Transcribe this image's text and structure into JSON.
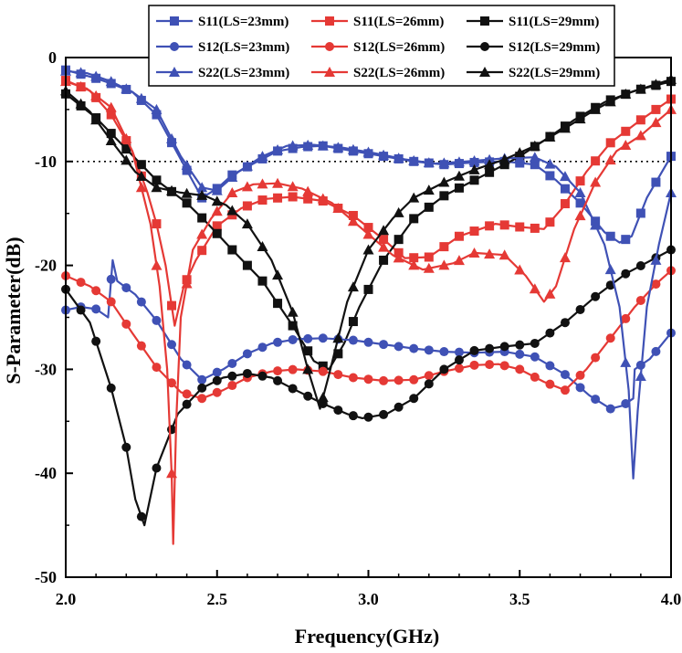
{
  "chart_data": {
    "type": "line",
    "xlabel": "Frequency(GHz)",
    "ylabel": "S-Parameter(dB)",
    "xlim": [
      2.0,
      4.0
    ],
    "ylim": [
      -50,
      0
    ],
    "xticks": [
      2.0,
      2.5,
      3.0,
      3.5,
      4.0
    ],
    "xtick_labels": [
      "2.0",
      "2.5",
      "3.0",
      "3.5",
      "4.0"
    ],
    "yticks": [
      0,
      -10,
      -20,
      -30,
      -40,
      -50
    ],
    "ytick_labels": [
      "0",
      "-10",
      "-20",
      "-30",
      "-40",
      "-50"
    ],
    "reference_line": {
      "y": -10,
      "style": "dotted"
    },
    "legend_position": "top",
    "grid": false,
    "series": [
      {
        "name": "S11(LS=23mm)",
        "color": "#3F51B5",
        "marker": "square",
        "points": [
          [
            2.0,
            -1.2
          ],
          [
            2.05,
            -1.6
          ],
          [
            2.1,
            -2.0
          ],
          [
            2.15,
            -2.5
          ],
          [
            2.22,
            -3.3
          ],
          [
            2.3,
            -5.5
          ],
          [
            2.38,
            -9.8
          ],
          [
            2.45,
            -13.5
          ],
          [
            2.5,
            -12.6
          ],
          [
            2.55,
            -11.3
          ],
          [
            2.62,
            -10.2
          ],
          [
            2.7,
            -9.0
          ],
          [
            2.78,
            -8.6
          ],
          [
            2.85,
            -8.5
          ],
          [
            2.95,
            -9.0
          ],
          [
            3.05,
            -9.5
          ],
          [
            3.15,
            -10.0
          ],
          [
            3.25,
            -10.3
          ],
          [
            3.35,
            -10.1
          ],
          [
            3.45,
            -10.0
          ],
          [
            3.55,
            -10.3
          ],
          [
            3.62,
            -11.8
          ],
          [
            3.7,
            -14.0
          ],
          [
            3.78,
            -16.8
          ],
          [
            3.83,
            -17.8
          ],
          [
            3.87,
            -17.2
          ],
          [
            3.92,
            -13.5
          ],
          [
            4.0,
            -9.5
          ]
        ]
      },
      {
        "name": "S11(LS=26mm)",
        "color": "#E53935",
        "marker": "square",
        "points": [
          [
            2.0,
            -2.2
          ],
          [
            2.08,
            -3.2
          ],
          [
            2.15,
            -5.5
          ],
          [
            2.22,
            -9.0
          ],
          [
            2.27,
            -13.0
          ],
          [
            2.3,
            -16.0
          ],
          [
            2.33,
            -20.0
          ],
          [
            2.36,
            -25.8
          ],
          [
            2.39,
            -22.0
          ],
          [
            2.43,
            -19.5
          ],
          [
            2.5,
            -16.2
          ],
          [
            2.58,
            -14.5
          ],
          [
            2.66,
            -13.6
          ],
          [
            2.75,
            -13.4
          ],
          [
            2.85,
            -13.8
          ],
          [
            2.95,
            -15.2
          ],
          [
            3.05,
            -17.5
          ],
          [
            3.12,
            -19.3
          ],
          [
            3.2,
            -19.2
          ],
          [
            3.3,
            -17.2
          ],
          [
            3.42,
            -16.0
          ],
          [
            3.5,
            -16.3
          ],
          [
            3.58,
            -16.5
          ],
          [
            3.64,
            -14.5
          ],
          [
            3.72,
            -11.0
          ],
          [
            3.8,
            -8.2
          ],
          [
            3.9,
            -6.0
          ],
          [
            4.0,
            -4.0
          ]
        ]
      },
      {
        "name": "S11(LS=29mm)",
        "color": "#111111",
        "marker": "square",
        "points": [
          [
            2.0,
            -3.5
          ],
          [
            2.1,
            -5.8
          ],
          [
            2.2,
            -8.8
          ],
          [
            2.3,
            -11.8
          ],
          [
            2.4,
            -14.0
          ],
          [
            2.47,
            -16.0
          ],
          [
            2.55,
            -18.5
          ],
          [
            2.65,
            -21.5
          ],
          [
            2.75,
            -25.8
          ],
          [
            2.82,
            -29.2
          ],
          [
            2.87,
            -30.0
          ],
          [
            2.92,
            -27.5
          ],
          [
            2.97,
            -24.0
          ],
          [
            3.05,
            -19.5
          ],
          [
            3.15,
            -15.5
          ],
          [
            3.25,
            -13.3
          ],
          [
            3.35,
            -11.8
          ],
          [
            3.45,
            -10.3
          ],
          [
            3.5,
            -9.5
          ],
          [
            3.58,
            -8.0
          ],
          [
            3.68,
            -6.0
          ],
          [
            3.78,
            -4.3
          ],
          [
            3.88,
            -3.2
          ],
          [
            4.0,
            -2.3
          ]
        ]
      },
      {
        "name": "S12(LS=23mm)",
        "color": "#3F51B5",
        "marker": "circle",
        "points": [
          [
            2.0,
            -24.3
          ],
          [
            2.05,
            -24.0
          ],
          [
            2.1,
            -24.2
          ],
          [
            2.14,
            -25.0
          ],
          [
            2.155,
            -19.5
          ],
          [
            2.17,
            -21.5
          ],
          [
            2.23,
            -22.8
          ],
          [
            2.3,
            -25.3
          ],
          [
            2.38,
            -29.0
          ],
          [
            2.45,
            -31.0
          ],
          [
            2.52,
            -30.0
          ],
          [
            2.6,
            -28.5
          ],
          [
            2.68,
            -27.5
          ],
          [
            2.76,
            -27.1
          ],
          [
            2.85,
            -27.0
          ],
          [
            2.95,
            -27.2
          ],
          [
            3.05,
            -27.6
          ],
          [
            3.15,
            -28.0
          ],
          [
            3.25,
            -28.3
          ],
          [
            3.35,
            -28.4
          ],
          [
            3.45,
            -28.3
          ],
          [
            3.55,
            -28.8
          ],
          [
            3.65,
            -30.5
          ],
          [
            3.73,
            -32.5
          ],
          [
            3.8,
            -33.8
          ],
          [
            3.84,
            -33.5
          ],
          [
            3.875,
            -32.8
          ],
          [
            3.88,
            -30.0
          ],
          [
            3.93,
            -29.0
          ],
          [
            4.0,
            -26.5
          ]
        ]
      },
      {
        "name": "S12(LS=26mm)",
        "color": "#E53935",
        "marker": "circle",
        "points": [
          [
            2.0,
            -21.0
          ],
          [
            2.08,
            -22.0
          ],
          [
            2.15,
            -23.5
          ],
          [
            2.22,
            -26.5
          ],
          [
            2.3,
            -29.8
          ],
          [
            2.38,
            -32.2
          ],
          [
            2.45,
            -32.8
          ],
          [
            2.52,
            -32.0
          ],
          [
            2.6,
            -30.8
          ],
          [
            2.68,
            -30.2
          ],
          [
            2.76,
            -30.0
          ],
          [
            2.85,
            -30.2
          ],
          [
            2.95,
            -30.8
          ],
          [
            3.05,
            -31.1
          ],
          [
            3.15,
            -31.0
          ],
          [
            3.25,
            -30.2
          ],
          [
            3.35,
            -29.6
          ],
          [
            3.43,
            -29.5
          ],
          [
            3.5,
            -30.0
          ],
          [
            3.58,
            -31.2
          ],
          [
            3.65,
            -32.0
          ],
          [
            3.72,
            -30.0
          ],
          [
            3.8,
            -27.0
          ],
          [
            3.88,
            -24.0
          ],
          [
            3.95,
            -21.8
          ],
          [
            4.0,
            -20.5
          ]
        ]
      },
      {
        "name": "S12(LS=29mm)",
        "color": "#111111",
        "marker": "circle",
        "points": [
          [
            2.0,
            -22.3
          ],
          [
            2.08,
            -25.5
          ],
          [
            2.15,
            -31.8
          ],
          [
            2.2,
            -37.5
          ],
          [
            2.23,
            -42.5
          ],
          [
            2.26,
            -45.0
          ],
          [
            2.3,
            -39.5
          ],
          [
            2.37,
            -34.3
          ],
          [
            2.45,
            -31.8
          ],
          [
            2.52,
            -30.8
          ],
          [
            2.6,
            -30.4
          ],
          [
            2.68,
            -30.8
          ],
          [
            2.76,
            -32.0
          ],
          [
            2.85,
            -33.3
          ],
          [
            2.93,
            -34.3
          ],
          [
            2.98,
            -34.7
          ],
          [
            3.06,
            -34.3
          ],
          [
            3.15,
            -32.8
          ],
          [
            3.25,
            -30.0
          ],
          [
            3.35,
            -28.2
          ],
          [
            3.45,
            -27.8
          ],
          [
            3.55,
            -27.5
          ],
          [
            3.65,
            -25.5
          ],
          [
            3.75,
            -23.0
          ],
          [
            3.85,
            -20.8
          ],
          [
            4.0,
            -18.5
          ]
        ]
      },
      {
        "name": "S22(LS=23mm)",
        "color": "#3F51B5",
        "marker": "triangle",
        "points": [
          [
            2.0,
            -1.3
          ],
          [
            2.07,
            -1.5
          ],
          [
            2.15,
            -2.3
          ],
          [
            2.22,
            -3.3
          ],
          [
            2.3,
            -5.0
          ],
          [
            2.38,
            -9.5
          ],
          [
            2.45,
            -12.5
          ],
          [
            2.5,
            -12.8
          ],
          [
            2.57,
            -11.0
          ],
          [
            2.65,
            -9.5
          ],
          [
            2.73,
            -8.5
          ],
          [
            2.82,
            -8.4
          ],
          [
            2.92,
            -8.7
          ],
          [
            3.02,
            -9.2
          ],
          [
            3.12,
            -9.8
          ],
          [
            3.22,
            -10.2
          ],
          [
            3.32,
            -10.0
          ],
          [
            3.45,
            -9.7
          ],
          [
            3.55,
            -9.6
          ],
          [
            3.62,
            -10.5
          ],
          [
            3.7,
            -13.0
          ],
          [
            3.78,
            -18.0
          ],
          [
            3.83,
            -24.0
          ],
          [
            3.86,
            -32.0
          ],
          [
            3.875,
            -40.5
          ],
          [
            3.89,
            -34.0
          ],
          [
            3.92,
            -24.0
          ],
          [
            3.96,
            -18.0
          ],
          [
            4.0,
            -13.0
          ]
        ]
      },
      {
        "name": "S22(LS=26mm)",
        "color": "#E53935",
        "marker": "triangle",
        "points": [
          [
            2.0,
            -2.3
          ],
          [
            2.07,
            -3.0
          ],
          [
            2.15,
            -4.8
          ],
          [
            2.22,
            -9.0
          ],
          [
            2.28,
            -16.0
          ],
          [
            2.31,
            -22.0
          ],
          [
            2.335,
            -30.0
          ],
          [
            2.35,
            -40.0
          ],
          [
            2.355,
            -46.8
          ],
          [
            2.365,
            -35.0
          ],
          [
            2.38,
            -25.0
          ],
          [
            2.42,
            -18.5
          ],
          [
            2.48,
            -15.5
          ],
          [
            2.55,
            -13.0
          ],
          [
            2.62,
            -12.2
          ],
          [
            2.7,
            -12.1
          ],
          [
            2.78,
            -12.6
          ],
          [
            2.88,
            -14.0
          ],
          [
            2.98,
            -16.5
          ],
          [
            3.08,
            -19.0
          ],
          [
            3.18,
            -20.4
          ],
          [
            3.28,
            -19.8
          ],
          [
            3.35,
            -18.8
          ],
          [
            3.45,
            -19.0
          ],
          [
            3.52,
            -21.0
          ],
          [
            3.58,
            -23.5
          ],
          [
            3.62,
            -22.0
          ],
          [
            3.68,
            -16.5
          ],
          [
            3.75,
            -12.0
          ],
          [
            3.82,
            -9.0
          ],
          [
            3.9,
            -7.5
          ],
          [
            4.0,
            -5.0
          ]
        ]
      },
      {
        "name": "S22(LS=29mm)",
        "color": "#111111",
        "marker": "triangle",
        "points": [
          [
            2.0,
            -3.2
          ],
          [
            2.08,
            -5.2
          ],
          [
            2.15,
            -8.0
          ],
          [
            2.23,
            -11.0
          ],
          [
            2.3,
            -12.5
          ],
          [
            2.38,
            -13.0
          ],
          [
            2.46,
            -13.3
          ],
          [
            2.53,
            -14.2
          ],
          [
            2.6,
            -16.0
          ],
          [
            2.68,
            -19.5
          ],
          [
            2.75,
            -24.5
          ],
          [
            2.8,
            -30.0
          ],
          [
            2.84,
            -33.8
          ],
          [
            2.87,
            -30.5
          ],
          [
            2.93,
            -23.5
          ],
          [
            3.0,
            -18.5
          ],
          [
            3.08,
            -15.5
          ],
          [
            3.15,
            -13.5
          ],
          [
            3.25,
            -12.0
          ],
          [
            3.35,
            -10.8
          ],
          [
            3.45,
            -9.8
          ],
          [
            3.55,
            -8.5
          ],
          [
            3.65,
            -6.8
          ],
          [
            3.75,
            -5.0
          ],
          [
            3.85,
            -3.5
          ],
          [
            4.0,
            -2.1
          ]
        ]
      }
    ]
  }
}
